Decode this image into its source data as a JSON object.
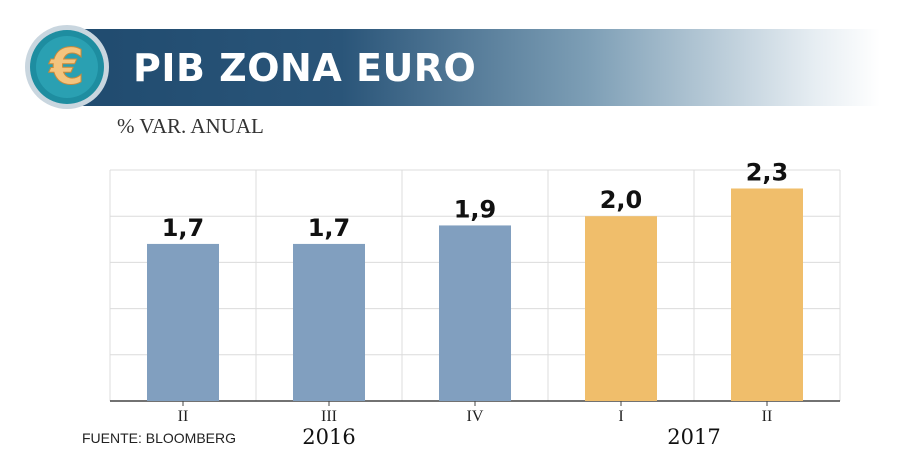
{
  "title": "PIB ZONA EURO",
  "subtitle": "% VAR. ANUAL",
  "source": "FUENTE: BLOOMBERG",
  "icon": "euro-icon",
  "colors": {
    "banner_dark": "#1f4a6e",
    "badge_teal": "#1e8da0",
    "bar_2016": "#819fbf",
    "bar_2017": "#f0be6b",
    "grid": "#dcdcdc"
  },
  "chart_data": {
    "type": "bar",
    "categories": [
      "II",
      "III",
      "IV",
      "I",
      "II"
    ],
    "groups": [
      {
        "label": "2016",
        "categories": [
          "II",
          "III",
          "IV"
        ]
      },
      {
        "label": "2017",
        "categories": [
          "I",
          "II"
        ]
      }
    ],
    "values": [
      1.7,
      1.7,
      1.9,
      2.0,
      2.3
    ],
    "value_labels": [
      "1,7",
      "1,7",
      "1,9",
      "2,0",
      "2,3"
    ],
    "bar_colors": [
      "#819fbf",
      "#819fbf",
      "#819fbf",
      "#f0be6b",
      "#f0be6b"
    ],
    "ylim": [
      0,
      2.5
    ],
    "grid": true
  }
}
